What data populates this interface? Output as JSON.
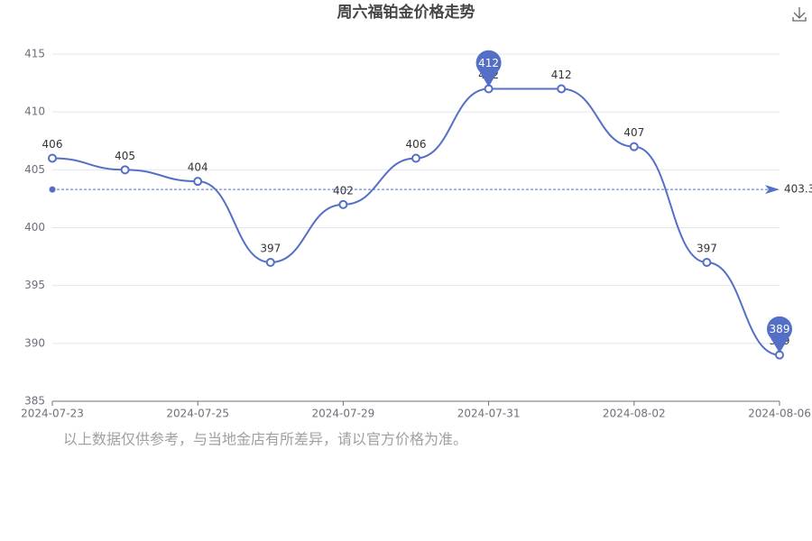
{
  "chart_data": {
    "type": "line",
    "title": "周六福铂金价格走势",
    "categories": [
      "2024-07-23",
      null,
      "2024-07-25",
      null,
      "2024-07-29",
      null,
      "2024-07-31",
      null,
      "2024-08-02",
      null,
      "2024-08-06"
    ],
    "series": [
      {
        "color": "#5470c6",
        "values": [
          406,
          405,
          404,
          397,
          402,
          406,
          412,
          412,
          407,
          397,
          389
        ]
      }
    ],
    "mark_points": [
      412,
      389
    ],
    "mark_line": 403.3,
    "ylim": [
      385,
      415
    ],
    "yticks": [
      385,
      390,
      395,
      400,
      405,
      410,
      415
    ],
    "grid": true,
    "note": "以上数据仅供参考，与当地金店有所差异，请以官方价格为准。"
  }
}
